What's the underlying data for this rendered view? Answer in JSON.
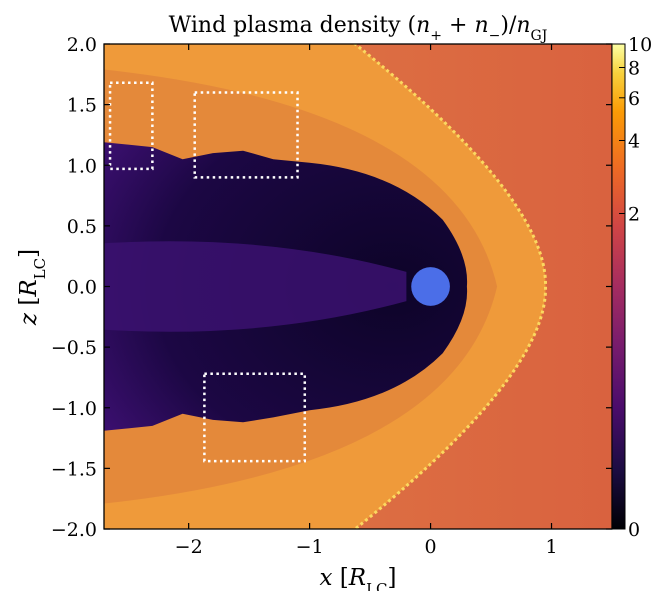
{
  "chart_data": {
    "type": "heatmap",
    "title": "Wind plasma density (n₊ + n₋)/nᴳᴶ",
    "xlabel": "x [Rₗᴄ]",
    "ylabel": "z [Rₗᴄ]",
    "xlim": [
      -2.7,
      1.5
    ],
    "ylim": [
      -2.0,
      2.0
    ],
    "x_ticks": [
      -2,
      -1,
      0,
      1
    ],
    "x_tick_labels": [
      "−2",
      "−1",
      "0",
      "1"
    ],
    "y_ticks": [
      -2.0,
      -1.5,
      -1.0,
      -0.5,
      0.0,
      0.5,
      1.0,
      1.5,
      2.0
    ],
    "y_tick_labels": [
      "−2.0",
      "−1.5",
      "−1.0",
      "−0.5",
      "0.0",
      "0.5",
      "1.0",
      "1.5",
      "2.0"
    ],
    "colorbar": {
      "scale": "symlog",
      "range": [
        0,
        10
      ],
      "ticks": [
        0,
        2,
        4,
        6,
        8,
        10
      ],
      "tick_labels": [
        "0",
        "2",
        "4",
        "6",
        "8",
        "10"
      ],
      "colormap": "inferno"
    },
    "pulsar": {
      "x": 0.0,
      "z": 0.0,
      "radius": 0.16,
      "color": "#4b6ee8"
    },
    "background_density": 1.6,
    "bow_shock_apex_x": 0.95,
    "highlight_boxes": [
      {
        "x0": -2.65,
        "x1": -2.3,
        "z0": 0.97,
        "z1": 1.68
      },
      {
        "x0": -1.95,
        "x1": -1.1,
        "z0": 0.9,
        "z1": 1.6
      },
      {
        "x0": -1.87,
        "x1": -1.04,
        "z0": -1.44,
        "z1": -0.72
      }
    ],
    "colors": {
      "cavity": "#14063a",
      "cavity_edge": "#3a0f6e",
      "shocked_wind": "#f0a230",
      "ambient": "#dd6a45",
      "shock_front": "#fbd860",
      "box_outline": "#ffffff"
    }
  }
}
